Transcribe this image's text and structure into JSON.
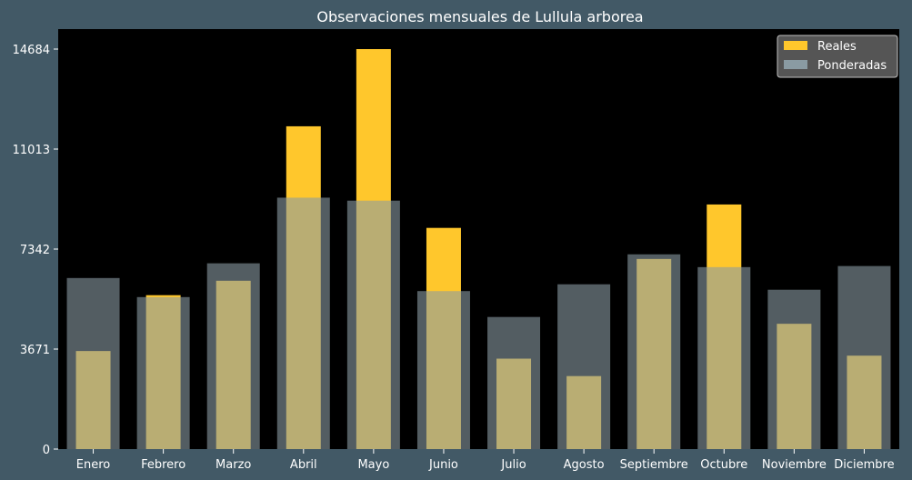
{
  "chart_data": {
    "type": "bar",
    "title": "Observaciones mensuales de Lullula arborea",
    "xlabel": "",
    "ylabel": "",
    "categories": [
      "Enero",
      "Febrero",
      "Marzo",
      "Abril",
      "Mayo",
      "Junio",
      "Julio",
      "Agosto",
      "Septiembre",
      "Octubre",
      "Noviembre",
      "Diciembre"
    ],
    "series": [
      {
        "name": "Reales",
        "values": [
          3600,
          5650,
          6180,
          11850,
          14684,
          8120,
          3320,
          2680,
          6980,
          8980,
          4600,
          3430
        ]
      },
      {
        "name": "Ponderadas",
        "values": [
          6280,
          5580,
          6820,
          9230,
          9120,
          5800,
          4850,
          6050,
          7150,
          6680,
          5850,
          6720
        ]
      }
    ],
    "yticks": [
      0,
      3671,
      7342,
      11013,
      14684
    ],
    "ylim": [
      0,
      14684
    ],
    "grid": false,
    "legend": "top-right",
    "colors": {
      "page_background": "#425966",
      "plot_background": "#000000",
      "reales": "#ffc72c",
      "ponderadas": "#8a9ba3",
      "ponderadas_opacity": "0.6"
    }
  }
}
